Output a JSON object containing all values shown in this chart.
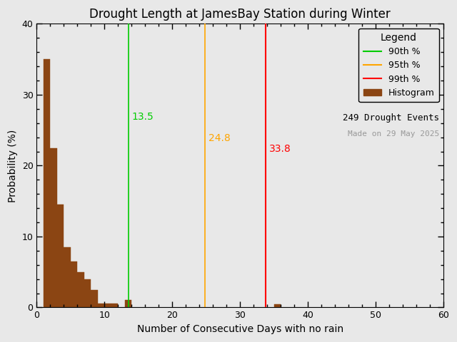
{
  "title": "Drought Length at JamesBay Station during Winter",
  "xlabel": "Number of Consecutive Days with no rain",
  "ylabel": "Probability (%)",
  "xlim": [
    0,
    60
  ],
  "ylim": [
    0,
    40
  ],
  "xticks": [
    0,
    10,
    20,
    30,
    40,
    50,
    60
  ],
  "yticks": [
    0,
    10,
    20,
    30,
    40
  ],
  "bar_color": "#8B4513",
  "bar_edgecolor": "#8B4513",
  "background_color": "#e8e8e8",
  "percentile_90": 13.5,
  "percentile_95": 24.8,
  "percentile_99": 33.8,
  "color_90": "#00CC00",
  "color_95": "#FFA500",
  "color_99": "#FF0000",
  "n_events": 249,
  "made_on": "29 May 2025",
  "bin_edges": [
    1,
    2,
    3,
    4,
    5,
    6,
    7,
    8,
    9,
    10,
    11,
    12,
    13,
    14,
    15,
    16,
    17,
    18,
    19,
    20,
    21,
    22,
    23,
    24,
    25,
    26,
    27,
    28,
    29,
    30,
    31,
    32,
    33,
    34,
    35,
    36,
    37,
    38,
    39,
    40,
    41,
    42,
    43,
    44,
    45,
    46,
    47,
    48,
    49,
    50,
    51,
    52,
    53,
    54,
    55,
    56,
    57,
    58,
    59
  ],
  "bin_heights": [
    35.0,
    22.5,
    14.5,
    8.5,
    6.5,
    5.0,
    4.0,
    2.5,
    0.5,
    0.5,
    0.5,
    0.0,
    1.1,
    0.0,
    0.0,
    0.0,
    0.0,
    0.0,
    0.0,
    0.0,
    0.0,
    0.0,
    0.0,
    0.0,
    0.0,
    0.0,
    0.0,
    0.0,
    0.0,
    0.0,
    0.0,
    0.0,
    0.0,
    0.0,
    0.4,
    0.0,
    0.0,
    0.0,
    0.0,
    0.0,
    0.0,
    0.0,
    0.0,
    0.0,
    0.0,
    0.0,
    0.0,
    0.0,
    0.0,
    0.0,
    0.0,
    0.0,
    0.0,
    0.0,
    0.0,
    0.0,
    0.0,
    0.0,
    0.0
  ]
}
